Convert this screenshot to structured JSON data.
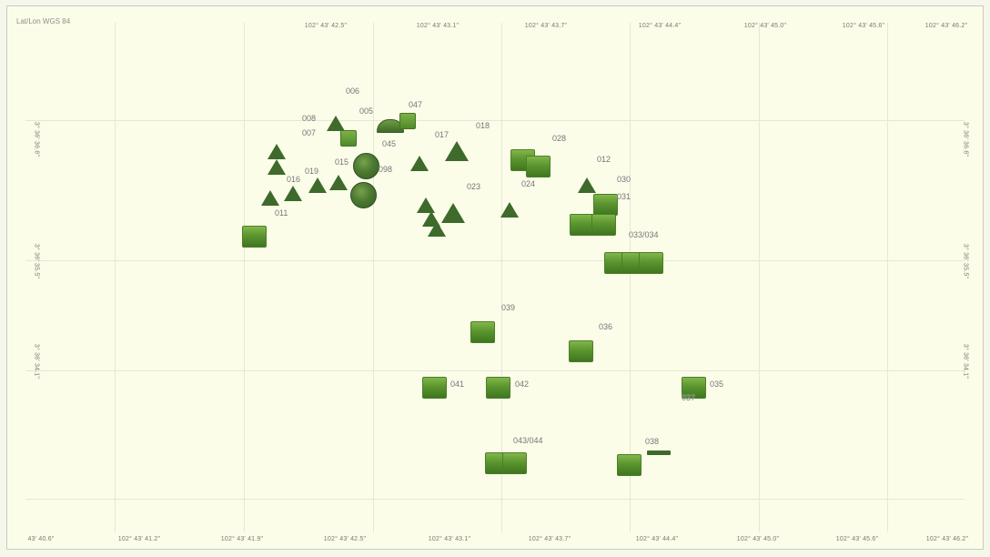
{
  "map": {
    "projection_label": "Lat/Lon WGS 84",
    "top_ticks": [
      "102° 43' 42.5\"",
      "102° 43' 43.1\"",
      "102° 43' 43.7\"",
      "102° 43' 44.4\"",
      "102° 43' 45.0\"",
      "102° 43' 45.6\"",
      "102° 43' 46.2\""
    ],
    "bottom_ticks": [
      "43' 40.6\"",
      "102° 43' 41.2\"",
      "102° 43' 41.9\"",
      "102° 43' 42.5\"",
      "102° 43' 43.1\"",
      "102° 43' 43.7\"",
      "102° 43' 44.4\"",
      "102° 43' 45.0\"",
      "102° 43' 45.6\"",
      "102° 43' 46.2\""
    ],
    "left_ticks": [
      "3° 36' 36.6\"",
      "3° 36' 35.5\"",
      "3° 36' 34.1\""
    ],
    "right_ticks": [
      "3° 36' 36.6\"",
      "3° 36' 35.5\"",
      "3° 36' 34.1\""
    ],
    "marker_labels": {
      "l006": "006",
      "l047": "047",
      "l008": "008",
      "l005": "005",
      "l007": "007",
      "l017": "017",
      "l018": "018",
      "l028": "028",
      "l045": "045",
      "l012": "012",
      "l015": "015",
      "l019": "019",
      "l098": "098",
      "l016": "016",
      "l030": "030",
      "l024": "024",
      "l023": "023",
      "l031": "031",
      "l011": "011",
      "l034": "033/034",
      "l039": "039",
      "l036": "036",
      "l041": "041",
      "l042": "042",
      "l035": "035",
      "l037": "037",
      "l038": "038",
      "l044": "043/044"
    }
  }
}
